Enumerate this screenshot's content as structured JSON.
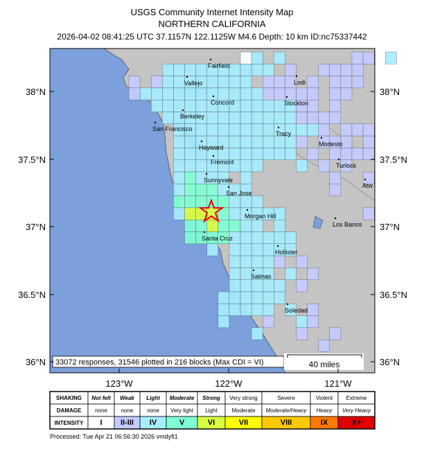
{
  "header": {
    "title": "USGS Community Internet Intensity Map",
    "region": "NORTHERN CALIFORNIA",
    "event": "2026-04-02 08:41:25 UTC 37.1157N 122.1125W M4.6 Depth: 10 km ID:nc75337442"
  },
  "map": {
    "cities": [
      "Fairfield",
      "Vallejo",
      "Lodi",
      "Concord",
      "Stockton",
      "Berkeley",
      "San Francisco",
      "Tracy",
      "Modesto",
      "Hayward",
      "Fremont",
      "Turlock",
      "Atw",
      "Sunnyvale",
      "San Jose",
      "Morgan Hill",
      "Los Banos",
      "Santa Cruz",
      "Hollister",
      "Salinas",
      "Soledad"
    ],
    "lat_labels": [
      "38°N",
      "37.5°N",
      "37°N",
      "36.5°N",
      "36°N"
    ],
    "lon_labels": [
      "123°W",
      "122°W",
      "121°W"
    ],
    "summary": "33072 responses, 31546 plotted in 216 blocks (Max CDI = VI)",
    "scale": "40 miles"
  },
  "legend": {
    "rows": [
      [
        "SHAKING",
        "Not felt",
        "Weak",
        "Light",
        "Moderate",
        "Strong",
        "Very strong",
        "Severe",
        "Violent",
        "Extreme"
      ],
      [
        "DAMAGE",
        "none",
        "none",
        "none",
        "Very light",
        "Light",
        "Moderate",
        "Moderate/Heavy",
        "Heavy",
        "Very Heavy"
      ],
      [
        "INTENSITY",
        "I",
        "II-III",
        "IV",
        "V",
        "VI",
        "VII",
        "VIII",
        "IX",
        "X+"
      ]
    ]
  },
  "footer": "Processed: Tue Apr 21 06:56:30 2026 vmdyfi1"
}
